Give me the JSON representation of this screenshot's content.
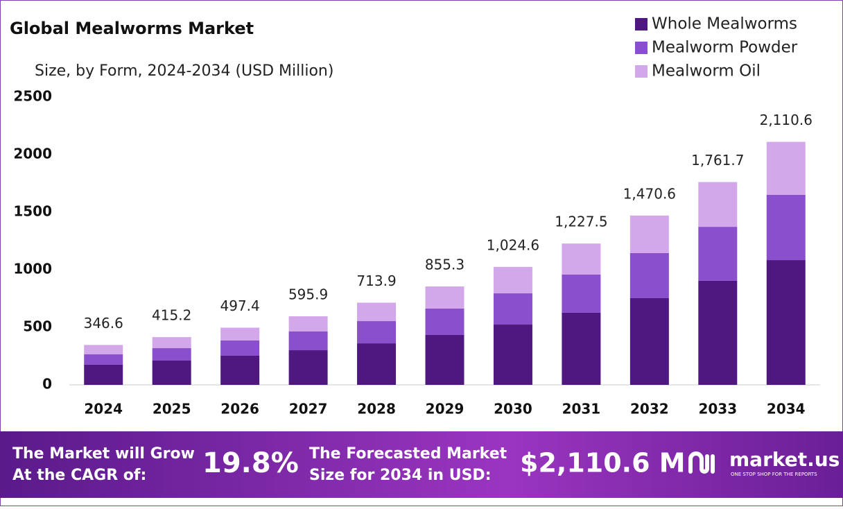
{
  "chart_data": {
    "type": "stacked_bar",
    "title": "Global Mealworms Market",
    "subtitle": "Size, by Form, 2024-2034 (USD Million)",
    "categories": [
      "2024",
      "2025",
      "2026",
      "2027",
      "2028",
      "2029",
      "2030",
      "2031",
      "2032",
      "2033",
      "2034"
    ],
    "series": [
      {
        "name": "Whole Mealworms",
        "color": "#4f1880",
        "values": [
          175,
          211,
          253,
          301,
          361,
          434,
          524,
          627,
          753,
          904,
          1084
        ]
      },
      {
        "name": "Mealworm Powder",
        "color": "#8a4fcc",
        "values": [
          90,
          108,
          133,
          163,
          193,
          229,
          271,
          331,
          392,
          469,
          567
        ]
      },
      {
        "name": "Mealworm Oil",
        "color": "#d3a8eb",
        "values": [
          82,
          96,
          111,
          132,
          160,
          192,
          230,
          270,
          326,
          389,
          460
        ]
      }
    ],
    "totals": {
      "values": [
        346.6,
        415.2,
        497.4,
        595.9,
        713.9,
        855.3,
        1024.6,
        1227.5,
        1470.6,
        1761.7,
        2110.6
      ],
      "value_labels": [
        "346.6",
        "415.2",
        "497.4",
        "595.9",
        "713.9",
        "855.3",
        "1,024.6",
        "1,227.5",
        "1,470.6",
        "1,761.7",
        "2,110.6"
      ]
    },
    "ylim": [
      0,
      2500
    ],
    "yticks": [
      0,
      500,
      1000,
      1500,
      2000,
      2500
    ],
    "grid": false,
    "legend": "top-right"
  },
  "footer": {
    "cagr_text": [
      "The Market will Grow",
      "At the CAGR of:"
    ],
    "cagr_value": "19.8%",
    "forecast_text": [
      "The Forecasted Market",
      "Size for 2034 in USD:"
    ],
    "forecast_value": "$2,110.6 M",
    "brand": "market.us",
    "tagline": "ONE STOP SHOP FOR THE REPORTS"
  }
}
